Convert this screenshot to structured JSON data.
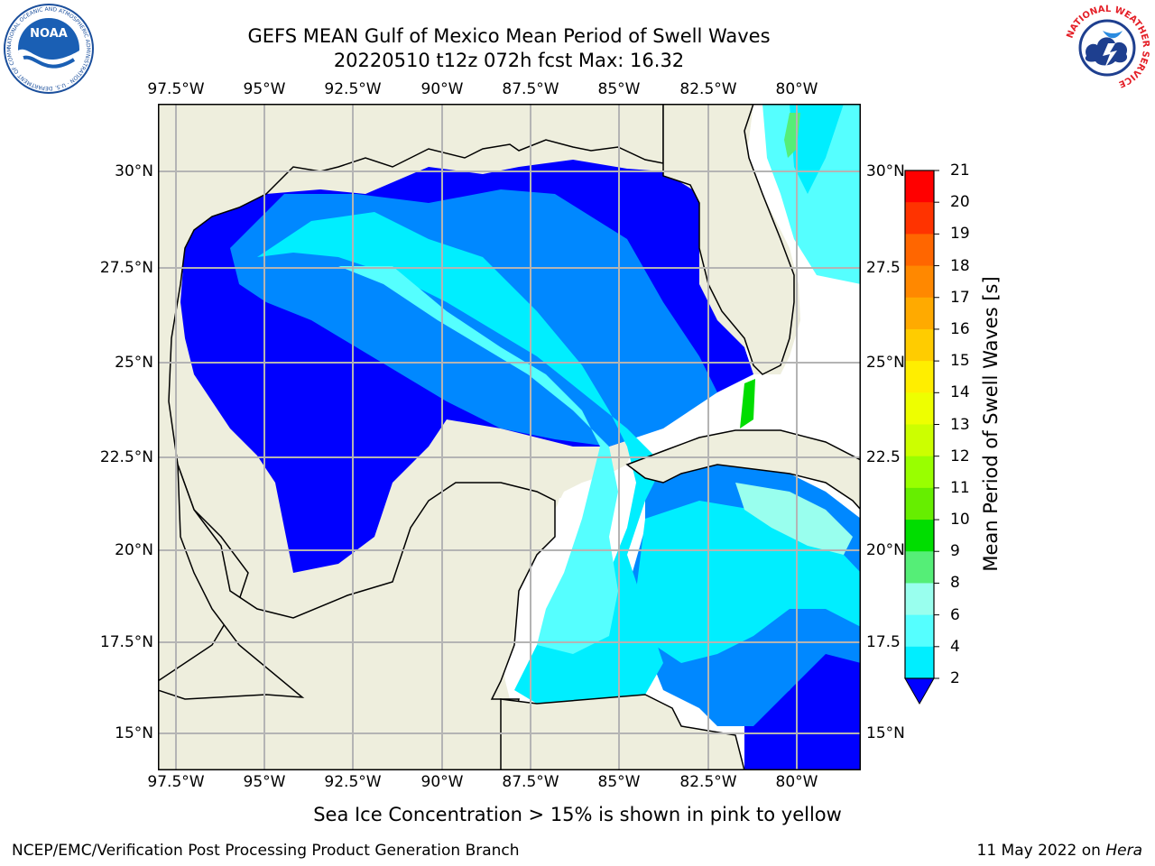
{
  "title": {
    "line1": "GEFS MEAN Gulf of Mexico Mean Period of Swell Waves",
    "line2": "20220510 t12z 072h fcst   Max: 16.32"
  },
  "map": {
    "lon_labels": [
      "97.5°W",
      "95°W",
      "92.5°W",
      "90°W",
      "87.5°W",
      "85°W",
      "82.5°W",
      "80°W"
    ],
    "lat_labels_left": [
      "30°N",
      "27.5°N",
      "25°N",
      "22.5°N",
      "20°N",
      "17.5°N",
      "15°N"
    ],
    "lat_labels_right": [
      "30°N",
      "27.5",
      "25°N",
      "22.5",
      "20°N",
      "17.5",
      "15°N"
    ],
    "colors": {
      "land": "#eeeedd",
      "no_data": "#ffffff",
      "coast": "#000000",
      "grid": "#b4b4b4"
    }
  },
  "colorbar": {
    "label": "Mean Period of Swell Waves [s]",
    "ticks": [
      "21",
      "20",
      "19",
      "18",
      "17",
      "16",
      "15",
      "14",
      "13",
      "12",
      "11",
      "10",
      "9",
      "8",
      "6",
      "4",
      "2"
    ],
    "colors": [
      "#ff0000",
      "#ff3300",
      "#ff6600",
      "#ff8800",
      "#ffaa00",
      "#ffcc00",
      "#ffee00",
      "#eeff00",
      "#ccff00",
      "#99ff00",
      "#66ee00",
      "#00dd00",
      "#55ee77",
      "#99ffee",
      "#55ffff",
      "#00eeff",
      "#0088ff"
    ],
    "under_color": "#0000ff"
  },
  "footnote": "Sea Ice Concentration > 15% is shown in pink to yellow",
  "credit": "NCEP/EMC/Verification Post Processing Product Generation Branch",
  "date": {
    "text": "11 May 2022 on ",
    "host": "Hera"
  },
  "logos": {
    "noaa_text": "NOAA",
    "noaa_ring": "NATIONAL OCEANIC AND ATMOSPHERIC ADMINISTRATION · U.S. DEPARTMENT OF COMMERCE",
    "nws_ring": "NATIONAL WEATHER SERVICE"
  }
}
